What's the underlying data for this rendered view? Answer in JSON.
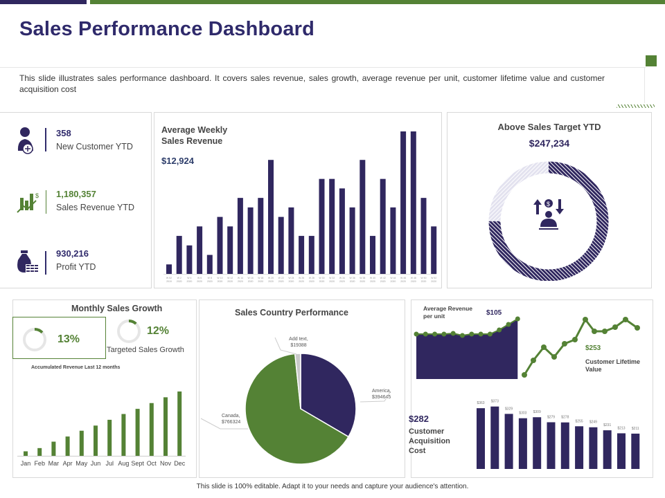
{
  "header": {
    "title": "Sales Performance Dashboard",
    "description": "This slide illustrates sales performance dashboard. It covers sales revenue, sales growth, average revenue per unit, customer lifetime value and customer acquisition cost"
  },
  "colors": {
    "purple": "#30275f",
    "green": "#548235",
    "gray": "#d9d9d9",
    "light": "#e3e2ef"
  },
  "kpis": [
    {
      "value": "358",
      "label": "New Customer YTD",
      "icon": "user-add-icon"
    },
    {
      "value": "1,180,357",
      "label": "Sales Revenue YTD",
      "icon": "growth-chart-icon"
    },
    {
      "value": "930,216",
      "label": "Profit YTD",
      "icon": "money-bag-icon"
    }
  ],
  "weekly": {
    "title_line1": "Average Weekly",
    "title_line2": "Sales Revenue",
    "value": "$12,924"
  },
  "target": {
    "title": "Above Sales Target YTD",
    "value": "$247,234",
    "fill_percent": 75
  },
  "monthly": {
    "title": "Monthly Sales Growth",
    "growth": "13%",
    "growth_fraction": 0.13,
    "targeted": "12%",
    "targeted_fraction": 0.12,
    "targeted_label": "Targeted Sales Growth",
    "acc_label": "Accumulated Revenue Last 12 months"
  },
  "country": {
    "title": "Sales Country Performance"
  },
  "unit": {
    "title_line1": "Average Revenue",
    "title_line2": "per unit",
    "value": "$105"
  },
  "clv": {
    "value": "$253",
    "label_line1": "Customer Lifetime",
    "label_line2": "Value"
  },
  "cac": {
    "value": "$282",
    "label_line1": "Customer",
    "label_line2": "Acquisition",
    "label_line3": "Cost"
  },
  "footer": "This slide is 100% editable. Adapt it to your needs and capture your audience's attention.",
  "chart_data": [
    {
      "type": "bar",
      "title": "Average Weekly Sales Revenue",
      "categories": [
        "W 52 2019",
        "W 2 2020",
        "W 4 2020",
        "W 6 2020",
        "W 8 2020",
        "W 10 2020",
        "W 12 2020",
        "W 14 2020",
        "W 16 2020",
        "W 18 2020",
        "W 20 2020",
        "W 22 2020",
        "W 24 2020",
        "W 26 2020",
        "W 28 2020",
        "W 30 2020",
        "W 32 2020",
        "W 34 2020",
        "W 36 2020",
        "W 38 2020",
        "W 40 2020",
        "W 42 2020",
        "W 44 2020",
        "W 46 2020",
        "W 48 2020",
        "W 50 2020",
        "W 52 2020"
      ],
      "values": [
        1,
        4,
        3,
        5,
        2,
        6,
        5,
        8,
        7,
        8,
        12,
        6,
        7,
        4,
        4,
        10,
        10,
        9,
        7,
        12,
        4,
        10,
        7,
        15,
        15,
        8,
        5
      ],
      "ylim": [
        0,
        15
      ]
    },
    {
      "type": "bar",
      "title": "Accumulated Revenue Last 12 months",
      "categories": [
        "Jan",
        "Feb",
        "Mar",
        "Apr",
        "May",
        "Jun",
        "Jul",
        "Aug",
        "Sept",
        "Oct",
        "Nov",
        "Dec"
      ],
      "values": [
        7,
        12,
        22,
        30,
        39,
        47,
        56,
        65,
        73,
        82,
        91,
        100
      ],
      "ylim": [
        0,
        100
      ]
    },
    {
      "type": "pie",
      "title": "Sales Country Performance",
      "labels": [
        "America",
        "Canada",
        "Add text"
      ],
      "label_text": [
        "America, $394645",
        "Canada, $766324",
        "Add text, $19388"
      ],
      "values": [
        394645,
        766324,
        19388
      ]
    },
    {
      "type": "area",
      "title": "Average Revenue per unit",
      "values": [
        65,
        65,
        65,
        65,
        66,
        63,
        65,
        65,
        65,
        71,
        79,
        87
      ],
      "ylim": [
        0,
        87
      ]
    },
    {
      "type": "line",
      "title": "Customer Lifetime Value",
      "values": [
        18,
        39,
        58,
        44,
        63,
        69,
        98,
        81,
        81,
        87,
        98,
        86
      ],
      "ylim": [
        0,
        100
      ]
    },
    {
      "type": "bar",
      "title": "Customer Acquisition Cost",
      "labels": [
        "$363",
        "$373",
        "$329",
        "$303",
        "$309",
        "$279",
        "$278",
        "$255",
        "$249",
        "$231",
        "$213",
        "$211"
      ],
      "values": [
        363,
        373,
        329,
        303,
        309,
        279,
        278,
        255,
        249,
        231,
        213,
        211
      ]
    }
  ]
}
